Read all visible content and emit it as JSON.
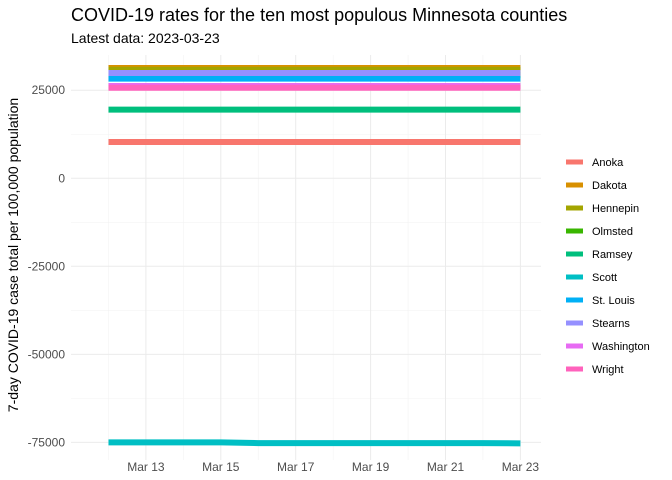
{
  "chart_data": {
    "type": "line",
    "title": "COVID-19 rates for the ten most populous Minnesota counties",
    "subtitle": "Latest data: 2023-03-23",
    "xlabel": "",
    "ylabel": "7-day COVID-19 case total per 100,000 population",
    "x": [
      "2023-03-12",
      "2023-03-13",
      "2023-03-14",
      "2023-03-15",
      "2023-03-16",
      "2023-03-17",
      "2023-03-18",
      "2023-03-19",
      "2023-03-20",
      "2023-03-21",
      "2023-03-22",
      "2023-03-23"
    ],
    "x_ticks": [
      "2023-03-13",
      "2023-03-15",
      "2023-03-17",
      "2023-03-19",
      "2023-03-21",
      "2023-03-23"
    ],
    "x_tick_labels": [
      "Mar 13",
      "Mar 15",
      "Mar 17",
      "Mar 19",
      "Mar 21",
      "Mar 23"
    ],
    "y_ticks": [
      25000,
      0,
      -25000,
      -50000,
      -75000
    ],
    "y_tick_labels": [
      "25000",
      "0",
      "-25000",
      "-50000",
      "-75000"
    ],
    "ylim": [
      -80000,
      35000
    ],
    "grid": true,
    "legend_placement": "right",
    "series": [
      {
        "name": "Anoka",
        "color": "#F8766D",
        "values": [
          10300,
          10300,
          10300,
          10300,
          10300,
          10300,
          10300,
          10300,
          10300,
          10300,
          10300,
          10300
        ]
      },
      {
        "name": "Dakota",
        "color": "#D89000",
        "values": [
          31300,
          31300,
          31300,
          31300,
          31300,
          31300,
          31300,
          31300,
          31300,
          31300,
          31300,
          31300
        ]
      },
      {
        "name": "Hennepin",
        "color": "#A3A500",
        "values": [
          30800,
          30800,
          30800,
          30800,
          30800,
          30800,
          30800,
          30800,
          30800,
          30800,
          30800,
          30800
        ]
      },
      {
        "name": "Olmsted",
        "color": "#39B600",
        "values": [
          29300,
          29300,
          29300,
          29300,
          29300,
          29300,
          29300,
          29300,
          29300,
          29300,
          29300,
          29300
        ]
      },
      {
        "name": "Ramsey",
        "color": "#00BF7D",
        "values": [
          19500,
          19500,
          19500,
          19500,
          19500,
          19500,
          19500,
          19500,
          19500,
          19500,
          19500,
          19500
        ]
      },
      {
        "name": "Scott",
        "color": "#00BFC4",
        "values": [
          -75000,
          -75000,
          -75000,
          -75000,
          -75200,
          -75200,
          -75200,
          -75200,
          -75200,
          -75200,
          -75200,
          -75300
        ]
      },
      {
        "name": "St. Louis",
        "color": "#00B0F6",
        "values": [
          28300,
          28300,
          28300,
          28300,
          28300,
          28300,
          28300,
          28300,
          28300,
          28300,
          28300,
          28300
        ]
      },
      {
        "name": "Stearns",
        "color": "#9590FF",
        "values": [
          29900,
          29900,
          29900,
          29900,
          29900,
          29900,
          29900,
          29900,
          29900,
          29900,
          29900,
          29900
        ]
      },
      {
        "name": "Washington",
        "color": "#E76BF3",
        "values": [
          26200,
          26200,
          26200,
          26200,
          26200,
          26200,
          26200,
          26200,
          26200,
          26200,
          26200,
          26200
        ]
      },
      {
        "name": "Wright",
        "color": "#FF62BC",
        "values": [
          25700,
          25700,
          25700,
          25700,
          25700,
          25700,
          25700,
          25700,
          25700,
          25700,
          25700,
          25700
        ]
      }
    ]
  }
}
